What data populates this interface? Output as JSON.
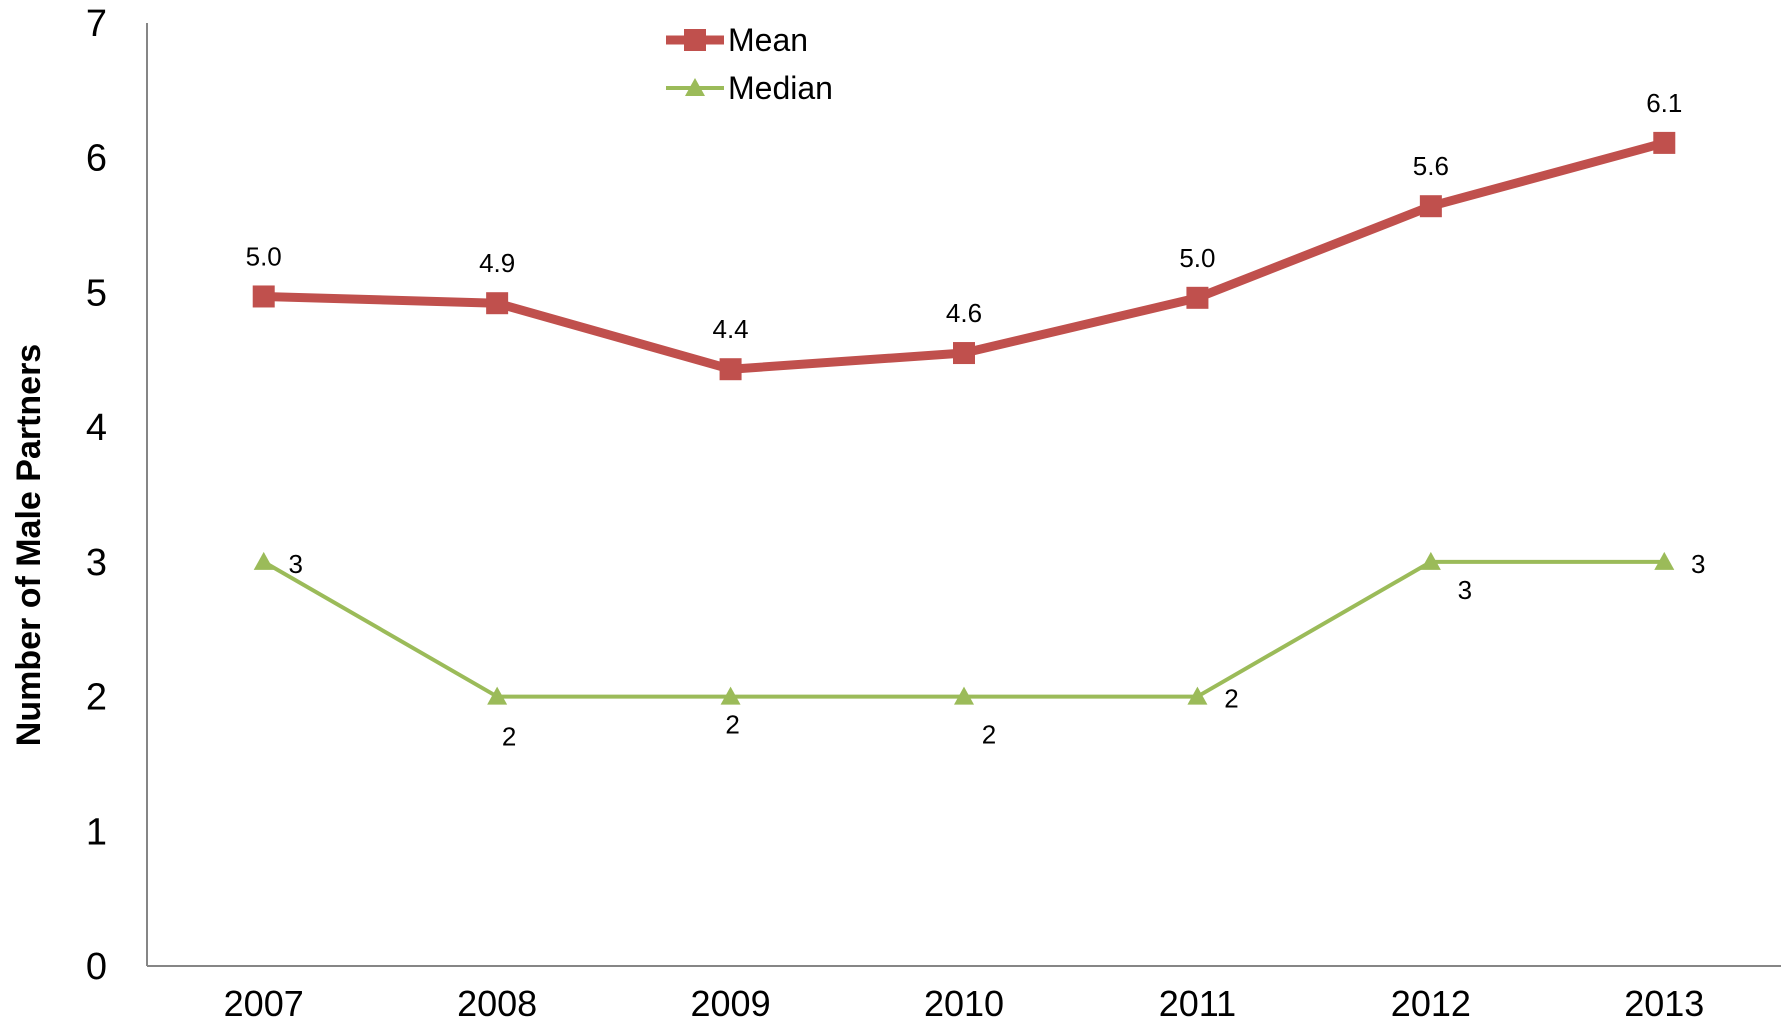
{
  "chart_data": {
    "type": "line",
    "title": "",
    "xlabel": "",
    "ylabel": "Number of Male Partners",
    "ylim": [
      0,
      7
    ],
    "yticks": [
      "0",
      "1",
      "2",
      "3",
      "4",
      "5",
      "6",
      "7"
    ],
    "categories": [
      "2007",
      "2008",
      "2009",
      "2010",
      "2011",
      "2012",
      "2013"
    ],
    "grid": false,
    "legend_position": "top-center",
    "series": [
      {
        "name": "Mean",
        "color": "#c0504d",
        "marker": "square",
        "values": [
          4.97,
          4.92,
          4.43,
          4.55,
          4.96,
          5.64,
          6.11
        ],
        "labels": [
          "5.0",
          "4.9",
          "4.4",
          "4.6",
          "5.0",
          "5.6",
          "6.1"
        ]
      },
      {
        "name": "Median",
        "color": "#9bbb59",
        "marker": "triangle",
        "values": [
          3,
          2,
          2,
          2,
          2,
          3,
          3
        ],
        "labels": [
          "3",
          "2",
          "2",
          "2",
          "2",
          "3",
          "3"
        ]
      }
    ]
  }
}
